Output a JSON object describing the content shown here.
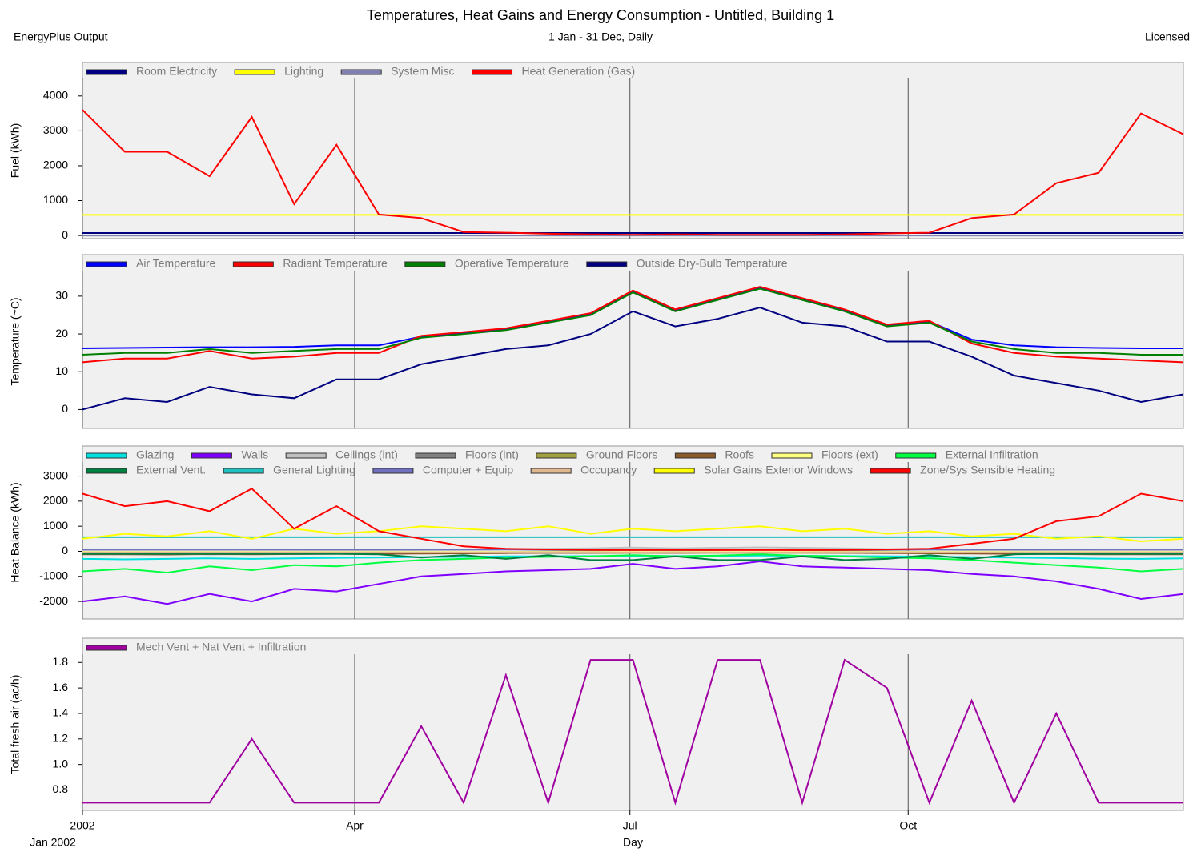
{
  "header": {
    "title": "Temperatures, Heat Gains and Energy Consumption - Untitled, Building 1",
    "left": "EnergyPlus Output",
    "center": "1 Jan - 31 Dec, Daily",
    "right": "Licensed"
  },
  "chart_data": [
    {
      "type": "line",
      "ylabel": "Fuel (kWh)",
      "x": [
        1,
        15,
        29,
        43,
        57,
        71,
        85,
        99,
        113,
        127,
        141,
        155,
        169,
        183,
        197,
        211,
        225,
        239,
        253,
        267,
        281,
        295,
        309,
        323,
        337,
        351,
        365
      ],
      "xlim": [
        1,
        365
      ],
      "xticks": [
        1,
        91,
        182,
        274
      ],
      "ylim": [
        -90,
        4960
      ],
      "yticks": [
        0,
        1000,
        2000,
        3000,
        4000
      ],
      "series": [
        {
          "name": "Room Electricity",
          "color": "#000080",
          "values": [
            70,
            70,
            70,
            70,
            70,
            70,
            70,
            70,
            70,
            70,
            70,
            70,
            70,
            70,
            70,
            70,
            70,
            70,
            70,
            70,
            70,
            70,
            70,
            70,
            70,
            70,
            70
          ]
        },
        {
          "name": "Lighting",
          "color": "#ffff00",
          "values": [
            590,
            590,
            590,
            590,
            590,
            590,
            590,
            590,
            590,
            590,
            590,
            590,
            590,
            590,
            590,
            590,
            590,
            590,
            590,
            590,
            590,
            590,
            590,
            590,
            590,
            590,
            590
          ]
        },
        {
          "name": "System Misc",
          "color": "#8080b0",
          "values": [
            0,
            0,
            0,
            0,
            0,
            0,
            0,
            0,
            0,
            0,
            0,
            0,
            0,
            0,
            0,
            0,
            0,
            0,
            0,
            0,
            0,
            0,
            0,
            0,
            0,
            0,
            0
          ]
        },
        {
          "name": "Heat Generation (Gas)",
          "color": "#ff0000",
          "values": [
            3600,
            2400,
            2400,
            1700,
            3400,
            900,
            2600,
            600,
            500,
            100,
            80,
            50,
            30,
            20,
            30,
            20,
            20,
            20,
            30,
            60,
            80,
            500,
            600,
            1500,
            1800,
            3500,
            2900
          ]
        }
      ]
    },
    {
      "type": "line",
      "ylabel": "Temperature  (~C)",
      "x": [
        1,
        15,
        29,
        43,
        57,
        71,
        85,
        99,
        113,
        127,
        141,
        155,
        169,
        183,
        197,
        211,
        225,
        239,
        253,
        267,
        281,
        295,
        309,
        323,
        337,
        351,
        365
      ],
      "xlim": [
        1,
        365
      ],
      "xticks": [
        1,
        91,
        182,
        274
      ],
      "ylim": [
        -5,
        41
      ],
      "yticks": [
        0,
        10,
        20,
        30
      ],
      "series": [
        {
          "name": "Air Temperature",
          "color": "#0000ff",
          "values": [
            16.2,
            16.3,
            16.4,
            16.5,
            16.5,
            16.6,
            17,
            17,
            19.3,
            20.3,
            21.3,
            23.3,
            25.3,
            31.3,
            26.3,
            29.3,
            32.3,
            29.3,
            26.3,
            22.3,
            23.3,
            18.5,
            17,
            16.5,
            16.3,
            16.2,
            16.2
          ]
        },
        {
          "name": "Radiant Temperature",
          "color": "#ff0000",
          "values": [
            12.5,
            13.5,
            13.5,
            15.5,
            13.5,
            14,
            15,
            15,
            19.5,
            20.5,
            21.5,
            23.5,
            25.5,
            31.5,
            26.5,
            29.5,
            32.5,
            29.5,
            26.5,
            22.5,
            23.5,
            17.5,
            15,
            14,
            13.5,
            13,
            12.5
          ]
        },
        {
          "name": "Operative Temperature",
          "color": "#008000",
          "values": [
            14.5,
            15,
            15,
            16,
            15,
            15.5,
            16,
            16,
            19,
            20,
            21,
            23,
            25,
            31,
            26,
            29,
            32,
            29,
            26,
            22,
            23,
            18,
            16,
            15,
            15,
            14.5,
            14.5
          ]
        },
        {
          "name": "Outside Dry-Bulb Temperature",
          "color": "#000080",
          "values": [
            0,
            3,
            2,
            6,
            4,
            3,
            8,
            8,
            12,
            14,
            16,
            17,
            20,
            26,
            22,
            24,
            27,
            23,
            22,
            18,
            18,
            14,
            9,
            7,
            5,
            2,
            4
          ]
        }
      ]
    },
    {
      "type": "line",
      "ylabel": "Heat Balance (kWh)",
      "x": [
        1,
        15,
        29,
        43,
        57,
        71,
        85,
        99,
        113,
        127,
        141,
        155,
        169,
        183,
        197,
        211,
        225,
        239,
        253,
        267,
        281,
        295,
        309,
        323,
        337,
        351,
        365
      ],
      "xlim": [
        1,
        365
      ],
      "xticks": [
        1,
        91,
        182,
        274
      ],
      "ylim": [
        -2700,
        4200
      ],
      "yticks": [
        3000,
        2000,
        1000,
        0,
        -1000,
        -2000
      ],
      "series": [
        {
          "name": "Glazing",
          "color": "#00e0e0",
          "values": [
            -300,
            -320,
            -300,
            -280,
            -300,
            -280,
            -260,
            -250,
            -230,
            -220,
            -200,
            -200,
            -190,
            -180,
            -190,
            -180,
            -170,
            -180,
            -190,
            -200,
            -210,
            -230,
            -250,
            -270,
            -290,
            -300,
            -280
          ]
        },
        {
          "name": "Walls",
          "color": "#8000ff",
          "values": [
            -2000,
            -1800,
            -2100,
            -1700,
            -2000,
            -1500,
            -1600,
            -1300,
            -1000,
            -900,
            -800,
            -750,
            -700,
            -500,
            -700,
            -600,
            -400,
            -600,
            -650,
            -700,
            -750,
            -900,
            -1000,
            -1200,
            -1500,
            -1900,
            -1700
          ]
        },
        {
          "name": "Ceilings (int)",
          "color": "#c0c0c0",
          "values": [
            0,
            0,
            0,
            0,
            0,
            10,
            20,
            30,
            50,
            60,
            80,
            100,
            120,
            150,
            120,
            140,
            160,
            140,
            120,
            90,
            70,
            40,
            20,
            10,
            0,
            0,
            0
          ]
        },
        {
          "name": "Floors (int)",
          "color": "#808080",
          "values": [
            -100,
            -100,
            -100,
            -120,
            -110,
            -100,
            -90,
            -80,
            -60,
            -40,
            -20,
            0,
            20,
            60,
            30,
            50,
            80,
            40,
            20,
            0,
            -20,
            -50,
            -80,
            -100,
            -100,
            -100,
            -100
          ]
        },
        {
          "name": "Ground Floors",
          "color": "#a0a040",
          "values": [
            -60,
            -60,
            -60,
            -60,
            -60,
            -60,
            -60,
            -60,
            -60,
            -60,
            -60,
            -60,
            -60,
            -60,
            -60,
            -60,
            -60,
            -60,
            -60,
            -60,
            -60,
            -60,
            -60,
            -60,
            -60,
            -60,
            -60
          ]
        },
        {
          "name": "Roofs",
          "color": "#8b5a2b",
          "values": [
            -120,
            -120,
            -130,
            -110,
            -120,
            -110,
            -100,
            -100,
            -90,
            -80,
            -70,
            -60,
            -60,
            -50,
            -60,
            -50,
            -40,
            -50,
            -60,
            -70,
            -80,
            -90,
            -100,
            -110,
            -120,
            -120,
            -120
          ]
        },
        {
          "name": "Floors (ext)",
          "color": "#ffff80",
          "values": [
            -20,
            -20,
            -20,
            -20,
            -20,
            -20,
            -20,
            -20,
            -20,
            -20,
            -20,
            -20,
            -20,
            -20,
            -20,
            -20,
            -20,
            -20,
            -20,
            -20,
            -20,
            -20,
            -20,
            -20,
            -20,
            -20,
            -20
          ]
        },
        {
          "name": "External Infiltration",
          "color": "#00ff40",
          "values": [
            -800,
            -700,
            -850,
            -600,
            -750,
            -550,
            -600,
            -450,
            -350,
            -300,
            -250,
            -220,
            -200,
            -150,
            -200,
            -170,
            -120,
            -180,
            -200,
            -250,
            -280,
            -350,
            -450,
            -550,
            -650,
            -800,
            -700
          ]
        },
        {
          "name": "External Vent.",
          "color": "#008040",
          "values": [
            -100,
            -100,
            -100,
            -100,
            -100,
            -100,
            -100,
            -120,
            -250,
            -150,
            -300,
            -150,
            -350,
            -350,
            -200,
            -350,
            -350,
            -200,
            -350,
            -300,
            -150,
            -300,
            -120,
            -100,
            -100,
            -100,
            -100
          ]
        },
        {
          "name": "General Lighting",
          "color": "#20c0c0",
          "values": [
            560,
            560,
            560,
            560,
            560,
            560,
            560,
            560,
            560,
            560,
            560,
            560,
            560,
            560,
            560,
            560,
            560,
            560,
            560,
            560,
            560,
            560,
            560,
            560,
            560,
            560,
            560
          ]
        },
        {
          "name": "Computer + Equip",
          "color": "#7070c0",
          "values": [
            70,
            70,
            70,
            70,
            70,
            70,
            70,
            70,
            70,
            70,
            70,
            70,
            70,
            70,
            70,
            70,
            70,
            70,
            70,
            70,
            70,
            70,
            70,
            70,
            70,
            70,
            70
          ]
        },
        {
          "name": "Occupancy",
          "color": "#e0b890",
          "values": [
            -40,
            -40,
            -40,
            -40,
            -40,
            -40,
            -40,
            -40,
            -40,
            -40,
            -40,
            -40,
            -40,
            -40,
            -40,
            -40,
            -40,
            -40,
            -40,
            -40,
            -40,
            -40,
            -40,
            -40,
            -40,
            -40,
            -40
          ]
        },
        {
          "name": "Solar Gains Exterior Windows",
          "color": "#ffff00",
          "values": [
            500,
            700,
            600,
            800,
            500,
            900,
            700,
            800,
            1000,
            900,
            800,
            1000,
            700,
            900,
            800,
            900,
            1000,
            800,
            900,
            700,
            800,
            600,
            700,
            500,
            600,
            400,
            500
          ]
        },
        {
          "name": "Zone/Sys Sensible Heating",
          "color": "#ff0000",
          "values": [
            2300,
            1800,
            2000,
            1600,
            2500,
            900,
            1800,
            800,
            500,
            200,
            100,
            80,
            60,
            50,
            60,
            50,
            50,
            50,
            60,
            80,
            100,
            300,
            500,
            1200,
            1400,
            2300,
            2000
          ]
        }
      ]
    },
    {
      "type": "line",
      "ylabel": "Total fresh air (ac/h)",
      "xlabel": "Day",
      "xnote": "Jan 2002",
      "x": [
        1,
        15,
        29,
        43,
        57,
        71,
        85,
        99,
        113,
        127,
        141,
        155,
        169,
        183,
        197,
        211,
        225,
        239,
        253,
        267,
        281,
        295,
        309,
        323,
        337,
        351,
        365
      ],
      "xlim": [
        1,
        365
      ],
      "xticks": [
        {
          "value": 1,
          "label": "2002"
        },
        {
          "value": 91,
          "label": "Apr"
        },
        {
          "value": 182,
          "label": "Jul"
        },
        {
          "value": 274,
          "label": "Oct"
        }
      ],
      "ylim": [
        0.64,
        1.99
      ],
      "yticks": [
        0.8,
        {
          "value": 1,
          "label": "1.0"
        },
        1.2,
        1.4,
        1.6,
        1.8
      ],
      "series": [
        {
          "name": "Mech Vent + Nat Vent + Infiltration",
          "color": "#a000a0",
          "values": [
            0.7,
            0.7,
            0.7,
            0.7,
            1.2,
            0.7,
            0.7,
            0.7,
            1.3,
            0.7,
            1.7,
            0.7,
            1.82,
            1.82,
            0.7,
            1.82,
            1.82,
            0.7,
            1.82,
            1.6,
            0.7,
            1.5,
            0.7,
            1.4,
            0.7,
            0.7,
            0.7
          ]
        }
      ]
    }
  ]
}
